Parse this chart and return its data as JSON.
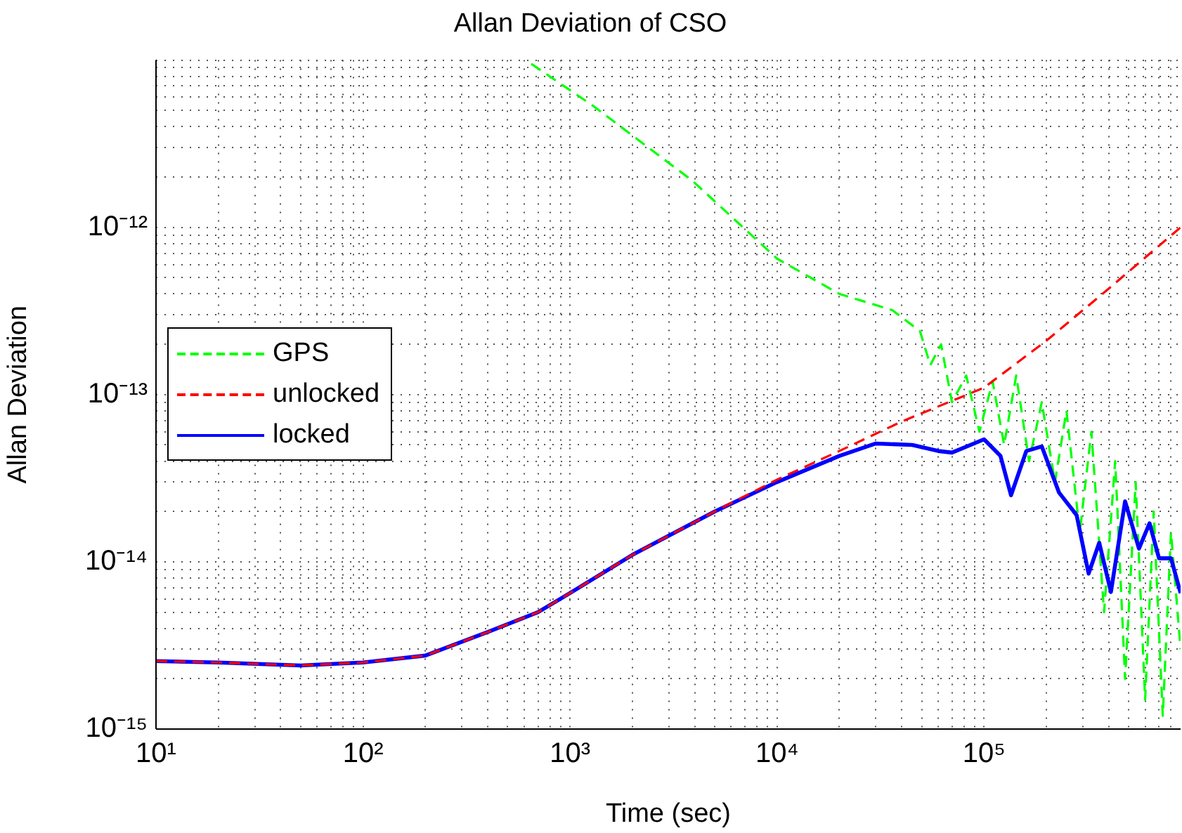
{
  "chart_data": {
    "type": "line",
    "title": "Allan Deviation of CSO",
    "xlabel": "Time (sec)",
    "ylabel": "Allan Deviation",
    "log": "xy",
    "grid": true,
    "legend": "left",
    "marker": "none",
    "xlim": [
      10,
      890000
    ],
    "ylim": [
      1e-15,
      1e-11
    ],
    "xticks": [
      {
        "value": 10,
        "label": "10¹"
      },
      {
        "value": 20,
        "label": null
      },
      {
        "value": 30,
        "label": null
      },
      {
        "value": 40,
        "label": null
      },
      {
        "value": 50,
        "label": null
      },
      {
        "value": 60,
        "label": null
      },
      {
        "value": 70,
        "label": null
      },
      {
        "value": 80,
        "label": null
      },
      {
        "value": 90,
        "label": null
      },
      {
        "value": 100,
        "label": "10²"
      },
      {
        "value": 200,
        "label": null
      },
      {
        "value": 300,
        "label": null
      },
      {
        "value": 400,
        "label": null
      },
      {
        "value": 500,
        "label": null
      },
      {
        "value": 600,
        "label": null
      },
      {
        "value": 700,
        "label": null
      },
      {
        "value": 800,
        "label": null
      },
      {
        "value": 900,
        "label": null
      },
      {
        "value": 1000,
        "label": "10³"
      },
      {
        "value": 2000,
        "label": null
      },
      {
        "value": 3000,
        "label": null
      },
      {
        "value": 4000,
        "label": null
      },
      {
        "value": 5000,
        "label": null
      },
      {
        "value": 6000,
        "label": null
      },
      {
        "value": 7000,
        "label": null
      },
      {
        "value": 8000,
        "label": null
      },
      {
        "value": 9000,
        "label": null
      },
      {
        "value": 10000,
        "label": "10⁴"
      },
      {
        "value": 20000,
        "label": null
      },
      {
        "value": 30000,
        "label": null
      },
      {
        "value": 40000,
        "label": null
      },
      {
        "value": 50000,
        "label": null
      },
      {
        "value": 60000,
        "label": null
      },
      {
        "value": 70000,
        "label": null
      },
      {
        "value": 80000,
        "label": null
      },
      {
        "value": 90000,
        "label": null
      },
      {
        "value": 100000,
        "label": "10⁵"
      },
      {
        "value": 200000,
        "label": null
      },
      {
        "value": 300000,
        "label": null
      },
      {
        "value": 400000,
        "label": null
      },
      {
        "value": 500000,
        "label": null
      },
      {
        "value": 600000,
        "label": null
      },
      {
        "value": 700000,
        "label": null
      },
      {
        "value": 800000,
        "label": null
      }
    ],
    "yticks": [
      {
        "value": 1e-15,
        "label": "10⁻¹⁵"
      },
      {
        "value": 2e-15,
        "label": null
      },
      {
        "value": 3e-15,
        "label": null
      },
      {
        "value": 4e-15,
        "label": null
      },
      {
        "value": 5e-15,
        "label": null
      },
      {
        "value": 6e-15,
        "label": null
      },
      {
        "value": 7e-15,
        "label": null
      },
      {
        "value": 8e-15,
        "label": null
      },
      {
        "value": 9e-15,
        "label": null
      },
      {
        "value": 1e-14,
        "label": "10⁻¹⁴"
      },
      {
        "value": 2e-14,
        "label": null
      },
      {
        "value": 3e-14,
        "label": null
      },
      {
        "value": 4e-14,
        "label": null
      },
      {
        "value": 5e-14,
        "label": null
      },
      {
        "value": 6e-14,
        "label": null
      },
      {
        "value": 7e-14,
        "label": null
      },
      {
        "value": 8e-14,
        "label": null
      },
      {
        "value": 9e-14,
        "label": null
      },
      {
        "value": 1e-13,
        "label": "10⁻¹³"
      },
      {
        "value": 2e-13,
        "label": null
      },
      {
        "value": 3e-13,
        "label": null
      },
      {
        "value": 4e-13,
        "label": null
      },
      {
        "value": 5e-13,
        "label": null
      },
      {
        "value": 6e-13,
        "label": null
      },
      {
        "value": 7e-13,
        "label": null
      },
      {
        "value": 8e-13,
        "label": null
      },
      {
        "value": 9e-13,
        "label": null
      },
      {
        "value": 1e-12,
        "label": "10⁻¹²"
      },
      {
        "value": 2e-12,
        "label": null
      },
      {
        "value": 3e-12,
        "label": null
      },
      {
        "value": 4e-12,
        "label": null
      },
      {
        "value": 5e-12,
        "label": null
      },
      {
        "value": 6e-12,
        "label": null
      },
      {
        "value": 7e-12,
        "label": null
      },
      {
        "value": 8e-12,
        "label": null
      },
      {
        "value": 9e-12,
        "label": null
      },
      {
        "value": 1e-11,
        "label": null
      }
    ],
    "series": [
      {
        "name": "GPS",
        "color": "#00ff00",
        "line_style": "dashed",
        "x": [
          650,
          1300,
          3900,
          10000,
          20000,
          36000,
          49000,
          55000,
          62000,
          70000,
          82000,
          95000,
          110000,
          125000,
          143000,
          165000,
          190000,
          220000,
          250000,
          290000,
          330000,
          380000,
          430000,
          480000,
          540000,
          600000,
          660000,
          730000,
          800000,
          890000
        ],
        "values": [
          9.5e-12,
          5.3e-12,
          1.9e-12,
          6.5e-13,
          4e-13,
          3.2e-13,
          2.4e-13,
          1.5e-13,
          2e-13,
          9e-14,
          1.3e-13,
          6e-14,
          1.2e-13,
          5e-14,
          1.3e-13,
          4e-14,
          9e-14,
          3e-14,
          8e-14,
          1.5e-14,
          6e-14,
          5e-15,
          4e-14,
          2e-15,
          3e-14,
          1.5e-15,
          2e-14,
          1.2e-15,
          1.5e-14,
          3e-15
        ]
      },
      {
        "name": "unlocked",
        "color": "#ff0000",
        "line_style": "dashed",
        "x": [
          10,
          20,
          50,
          100,
          200,
          400,
          700,
          1000,
          2000,
          5000,
          10000,
          20000,
          40000,
          100000,
          200000,
          400000,
          890000
        ],
        "values": [
          2.55e-15,
          2.5e-15,
          2.4e-15,
          2.5e-15,
          2.75e-15,
          3.8e-15,
          5e-15,
          6.5e-15,
          1.1e-14,
          2e-14,
          3.1e-14,
          4.6e-14,
          6.9e-14,
          1.1e-13,
          2.1e-13,
          4.3e-13,
          1e-12
        ]
      },
      {
        "name": "locked",
        "color": "#0000ff",
        "line_style": "solid",
        "x": [
          10,
          20,
          50,
          100,
          200,
          400,
          700,
          1000,
          2000,
          5000,
          10000,
          20000,
          30000,
          45000,
          60000,
          70000,
          100000,
          120000,
          135000,
          160000,
          190000,
          230000,
          280000,
          320000,
          360000,
          410000,
          480000,
          560000,
          630000,
          700000,
          800000,
          890000
        ],
        "values": [
          2.55e-15,
          2.5e-15,
          2.4e-15,
          2.5e-15,
          2.75e-15,
          3.8e-15,
          5e-15,
          6.5e-15,
          1.1e-14,
          2e-14,
          3e-14,
          4.3e-14,
          5.1e-14,
          5e-14,
          4.6e-14,
          4.5e-14,
          5.4e-14,
          4.3e-14,
          2.5e-14,
          4.6e-14,
          4.9e-14,
          2.6e-14,
          1.9e-14,
          8.5e-15,
          1.3e-14,
          6.6e-15,
          2.3e-14,
          1.2e-14,
          1.7e-14,
          1.05e-14,
          1.05e-14,
          6.5e-15
        ]
      }
    ]
  }
}
